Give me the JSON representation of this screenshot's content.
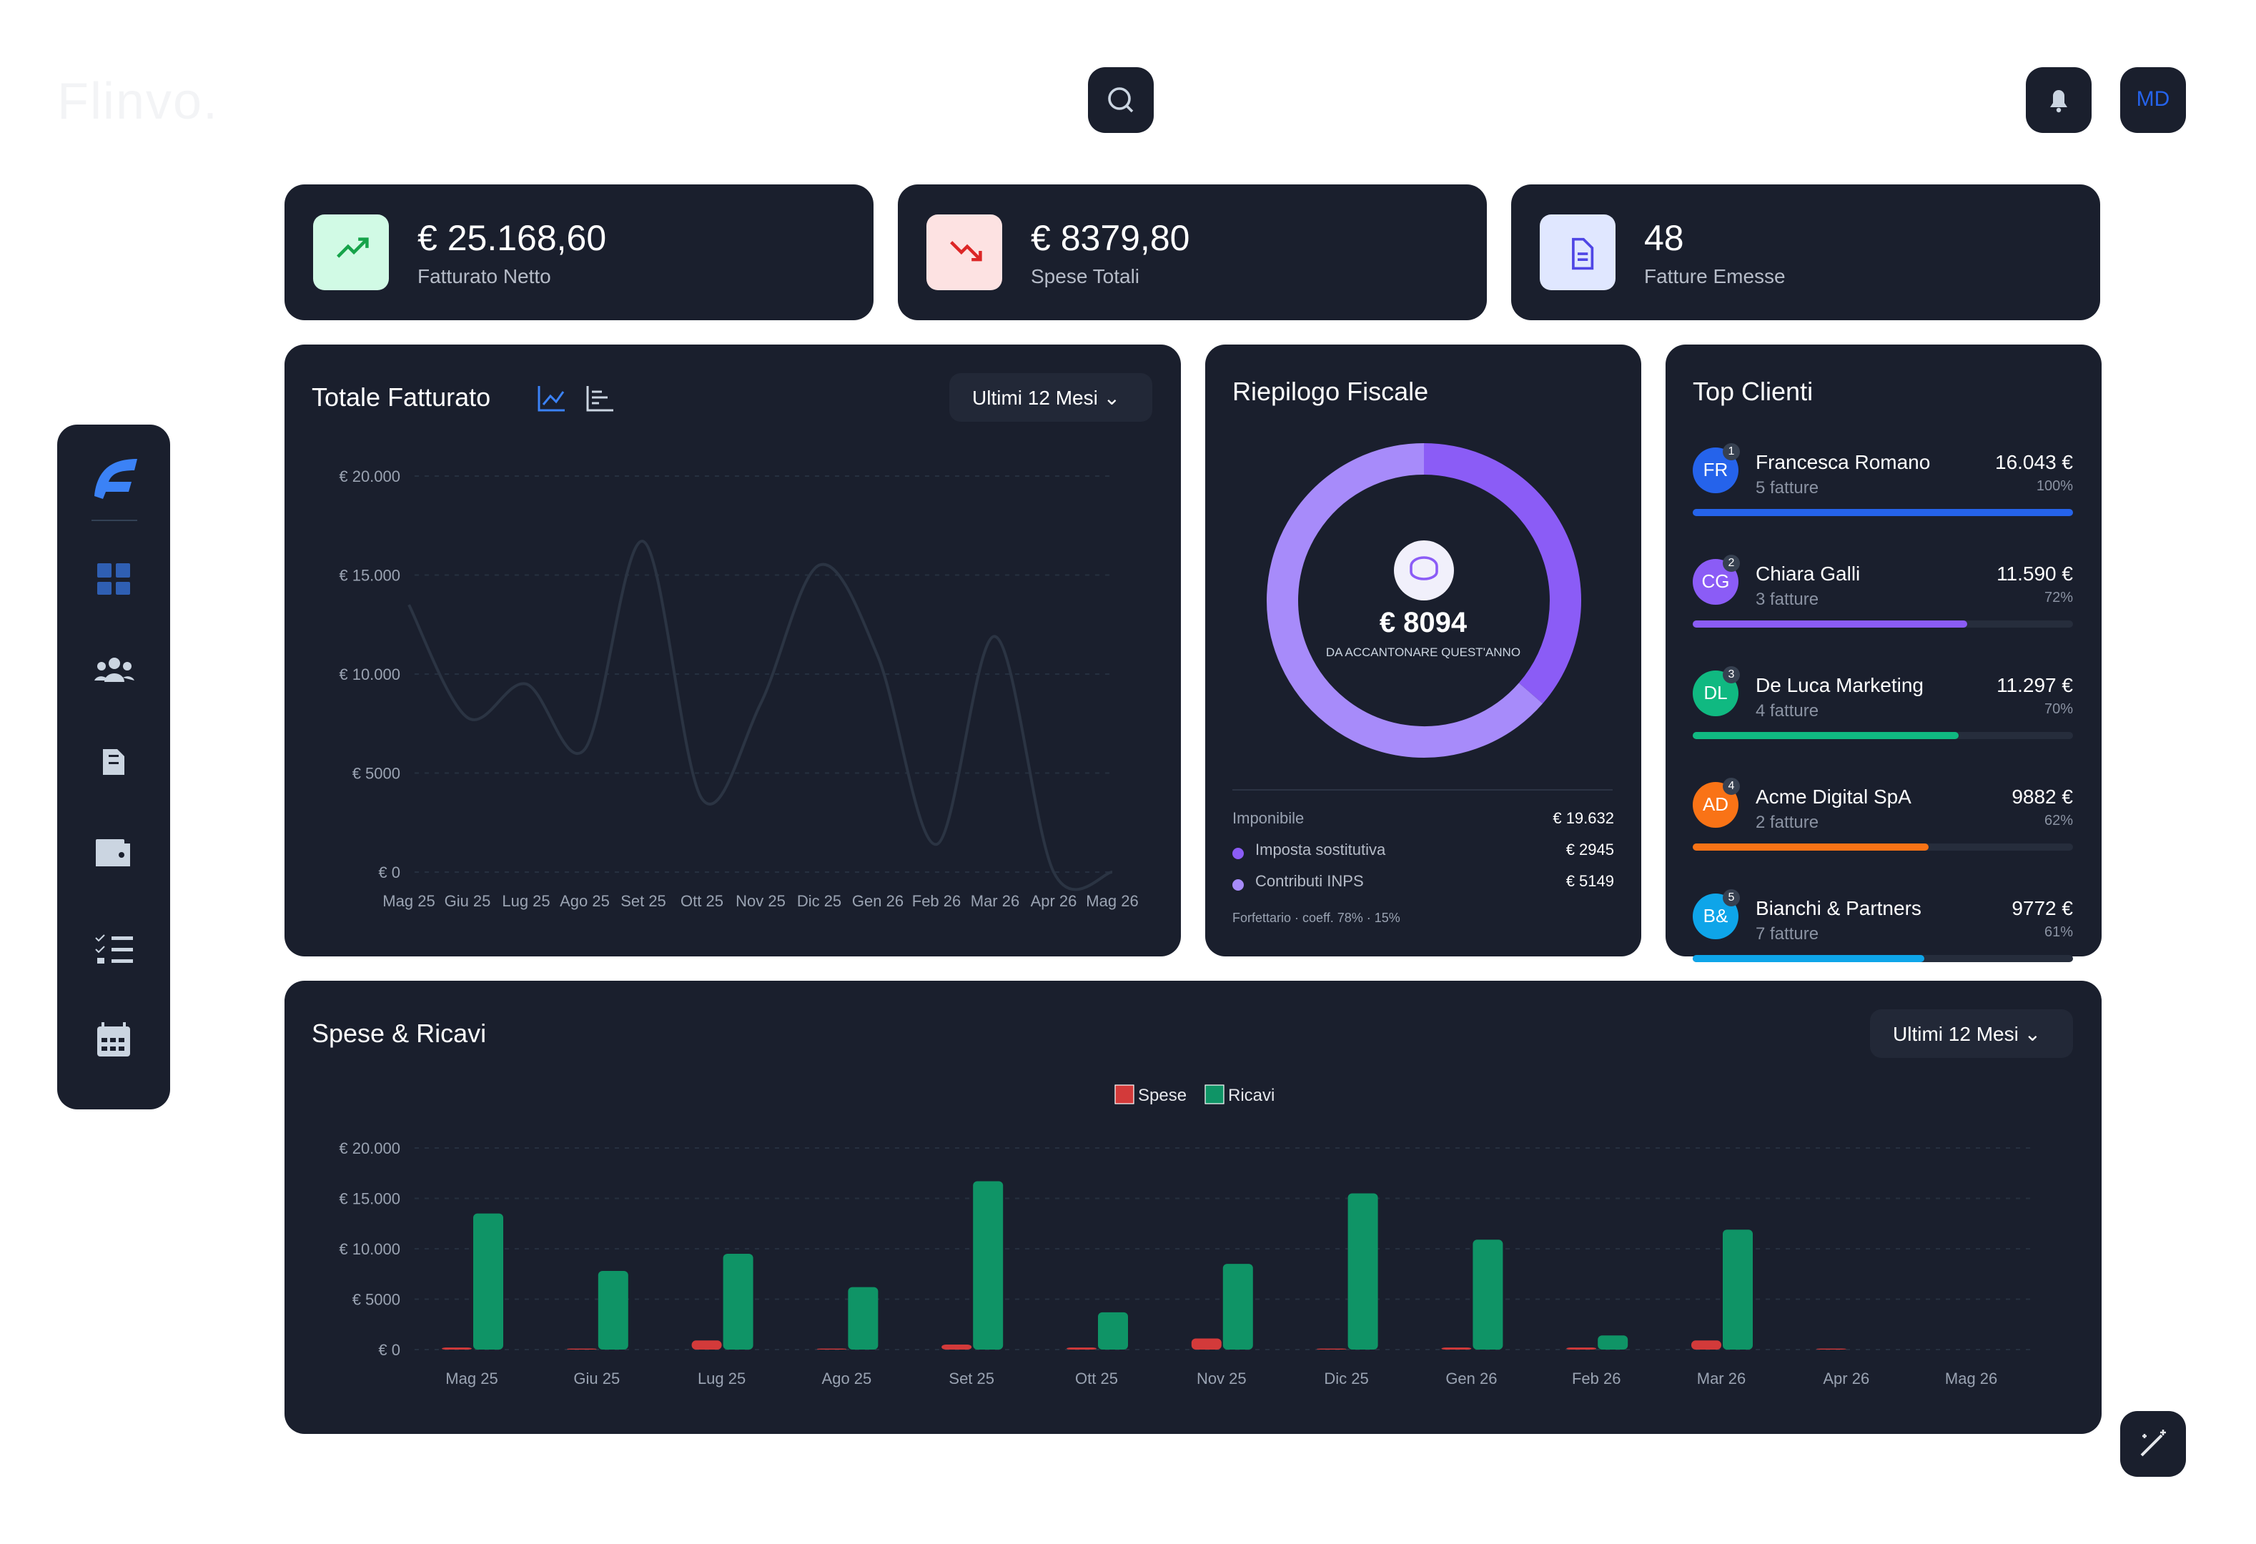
{
  "header": {
    "logo": "Flinvo.",
    "avatar": "MD"
  },
  "kpis": [
    {
      "value": "€ 25.168,60",
      "label": "Fatturato Netto"
    },
    {
      "value": "€ 8379,80",
      "label": "Spese Totali"
    },
    {
      "value": "48",
      "label": "Fatture Emesse"
    }
  ],
  "revenue_chart": {
    "type": "line",
    "title": "Totale Fatturato",
    "period": "Ultimi 12 Mesi",
    "categories": [
      "Mag 25",
      "Giu 25",
      "Lug 25",
      "Ago 25",
      "Set 25",
      "Ott 25",
      "Nov 25",
      "Dic 25",
      "Gen 26",
      "Feb 26",
      "Mar 26",
      "Apr 26",
      "Mag 26"
    ],
    "values": [
      13500,
      7800,
      9500,
      6200,
      16700,
      3700,
      8500,
      15500,
      10900,
      1400,
      11900,
      0,
      0
    ],
    "color": "#2b3443",
    "ylim": [
      0,
      20000
    ],
    "yticks": [
      {
        "value": 0,
        "label": "€ 0"
      },
      {
        "value": 5000,
        "label": "€ 5000"
      },
      {
        "value": 10000,
        "label": "€ 10.000"
      },
      {
        "value": 15000,
        "label": "€ 15.000"
      },
      {
        "value": 20000,
        "label": "€ 20.000"
      }
    ],
    "grid": true
  },
  "fiscal": {
    "type": "pie",
    "title": "Riepilogo Fiscale",
    "total": "€ 8094",
    "caption": "DA ACCANTONARE QUEST'ANNO",
    "taxable_label": "Imponibile",
    "taxable": "€ 19.632",
    "categories": [
      "Imposta sostitutiva",
      "Contributi INPS"
    ],
    "values": [
      2945,
      5149
    ],
    "value_labels": [
      "€ 2945",
      "€ 5149"
    ],
    "colors": [
      "#8b5cf6",
      "#a78bfa"
    ],
    "note": "Forfettario · coeff. 78% · 15%"
  },
  "clients": {
    "title": "Top Clienti",
    "items": [
      {
        "initials": "FR",
        "rank": "1",
        "name": "Francesca Romano",
        "invoices": "5 fatture",
        "amount": "16.043 €",
        "share": 100,
        "share_label": "100%",
        "color": "#2563eb"
      },
      {
        "initials": "CG",
        "rank": "2",
        "name": "Chiara Galli",
        "invoices": "3 fatture",
        "amount": "11.590 €",
        "share": 72,
        "share_label": "72%",
        "color": "#8b5cf6"
      },
      {
        "initials": "DL",
        "rank": "3",
        "name": "De Luca Marketing",
        "invoices": "4 fatture",
        "amount": "11.297 €",
        "share": 70,
        "share_label": "70%",
        "color": "#10b981"
      },
      {
        "initials": "AD",
        "rank": "4",
        "name": "Acme Digital SpA",
        "invoices": "2 fatture",
        "amount": "9882 €",
        "share": 62,
        "share_label": "62%",
        "color": "#f97316"
      },
      {
        "initials": "B&",
        "rank": "5",
        "name": "Bianchi & Partners",
        "invoices": "7 fatture",
        "amount": "9772 €",
        "share": 61,
        "share_label": "61%",
        "color": "#0ea5e9"
      }
    ]
  },
  "flow_chart": {
    "type": "bar",
    "title": "Spese & Ricavi",
    "period": "Ultimi 12 Mesi",
    "categories": [
      "Mag 25",
      "Giu 25",
      "Lug 25",
      "Ago 25",
      "Set 25",
      "Ott 25",
      "Nov 25",
      "Dic 25",
      "Gen 26",
      "Feb 26",
      "Mar 26",
      "Apr 26",
      "Mag 26"
    ],
    "series": [
      {
        "name": "Spese",
        "color": "#d33a3a",
        "values": [
          200,
          100,
          900,
          100,
          500,
          200,
          1100,
          100,
          200,
          200,
          900,
          100,
          0
        ]
      },
      {
        "name": "Ricavi",
        "color": "#0f9466",
        "values": [
          13500,
          7800,
          9500,
          6200,
          16700,
          3700,
          8500,
          15500,
          10900,
          1400,
          11900,
          0,
          0
        ]
      }
    ],
    "ylim": [
      0,
      20000
    ],
    "yticks": [
      {
        "value": 0,
        "label": "€ 0"
      },
      {
        "value": 5000,
        "label": "€ 5000"
      },
      {
        "value": 10000,
        "label": "€ 10.000"
      },
      {
        "value": 15000,
        "label": "€ 15.000"
      },
      {
        "value": 20000,
        "label": "€ 20.000"
      }
    ],
    "grid": true,
    "legend": "top"
  }
}
